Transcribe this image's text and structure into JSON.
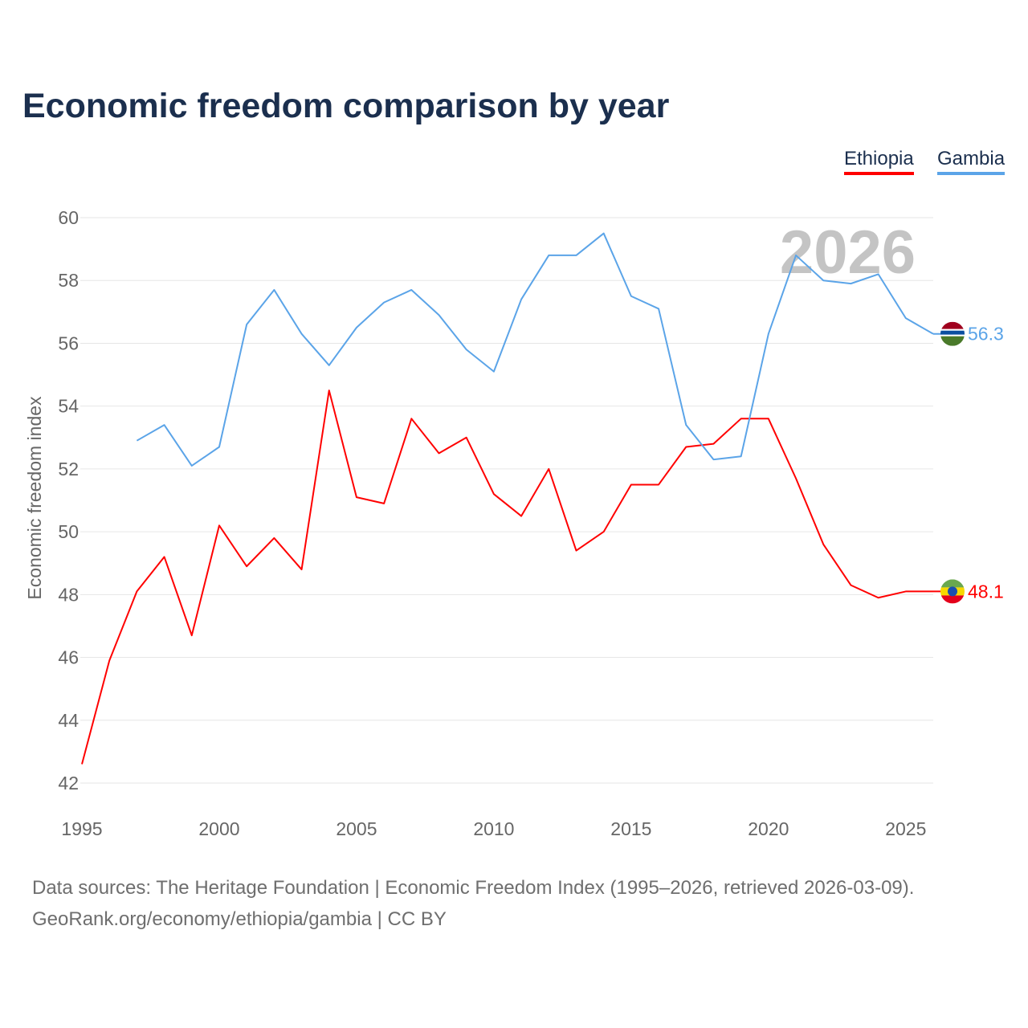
{
  "title": "Economic freedom comparison by year",
  "footer": {
    "line1": "Data sources: The Heritage Foundation | Economic Freedom Index (1995–2026, retrieved 2026-03-09).",
    "line2": "GeoRank.org/economy/ethiopia/gambia | CC BY"
  },
  "chart_data": {
    "type": "line",
    "title": "Economic freedom comparison by year",
    "xlabel": "",
    "ylabel": "Economic freedom index",
    "xlim": [
      1995,
      2026
    ],
    "ylim": [
      42,
      60
    ],
    "xticks": [
      "1995",
      "2000",
      "2005",
      "2010",
      "2015",
      "2020",
      "2025"
    ],
    "yticks": [
      "42",
      "44",
      "46",
      "48",
      "50",
      "52",
      "54",
      "56",
      "58",
      "60"
    ],
    "grid": true,
    "legend_position": "top-right",
    "watermark_year": "2026",
    "series": [
      {
        "name": "Ethiopia",
        "color": "#ff0000",
        "end_label": "48.1",
        "x": [
          1995,
          1996,
          1997,
          1998,
          1999,
          2000,
          2001,
          2002,
          2003,
          2004,
          2005,
          2006,
          2007,
          2008,
          2009,
          2010,
          2011,
          2012,
          2013,
          2014,
          2015,
          2016,
          2017,
          2018,
          2019,
          2020,
          2021,
          2022,
          2023,
          2024,
          2025,
          2026
        ],
        "values": [
          42.6,
          45.9,
          48.1,
          49.2,
          46.7,
          50.2,
          48.9,
          49.8,
          48.8,
          54.5,
          51.1,
          50.9,
          53.6,
          52.5,
          53.0,
          51.2,
          50.5,
          52.0,
          49.4,
          50.0,
          51.5,
          51.5,
          52.7,
          52.8,
          53.6,
          53.6,
          51.7,
          49.6,
          48.3,
          47.9,
          48.1,
          48.1
        ]
      },
      {
        "name": "Gambia",
        "color": "#5ba4e8",
        "end_label": "56.3",
        "x": [
          1997,
          1998,
          1999,
          2000,
          2001,
          2002,
          2003,
          2004,
          2005,
          2006,
          2007,
          2008,
          2009,
          2010,
          2011,
          2012,
          2013,
          2014,
          2015,
          2016,
          2017,
          2018,
          2019,
          2020,
          2021,
          2022,
          2023,
          2024,
          2025,
          2026
        ],
        "values": [
          52.9,
          53.4,
          52.1,
          52.7,
          56.6,
          57.7,
          56.3,
          55.3,
          56.5,
          57.3,
          57.7,
          56.9,
          55.8,
          55.1,
          57.4,
          58.8,
          58.8,
          59.5,
          57.5,
          57.1,
          53.4,
          52.3,
          52.4,
          56.3,
          58.8,
          58.0,
          57.9,
          58.2,
          56.8,
          56.3
        ]
      }
    ]
  }
}
